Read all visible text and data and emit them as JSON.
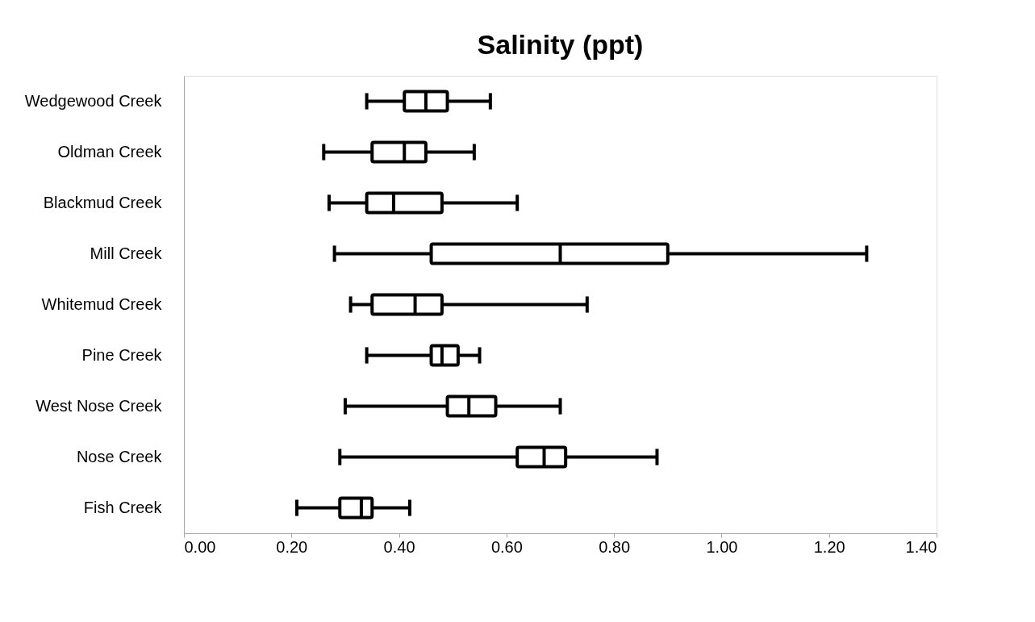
{
  "chart_data": {
    "type": "box",
    "title": "Salinity (ppt)",
    "orientation": "horizontal",
    "grid": false,
    "categories": [
      "Wedgewood Creek",
      "Oldman Creek",
      "Blackmud Creek",
      "Mill Creek",
      "Whitemud Creek",
      "Pine Creek",
      "West Nose Creek",
      "Nose Creek",
      "Fish Creek"
    ],
    "boxes": [
      {
        "low": 0.34,
        "q1": 0.41,
        "median": 0.45,
        "q3": 0.49,
        "high": 0.57
      },
      {
        "low": 0.26,
        "q1": 0.35,
        "median": 0.41,
        "q3": 0.45,
        "high": 0.54
      },
      {
        "low": 0.27,
        "q1": 0.34,
        "median": 0.39,
        "q3": 0.48,
        "high": 0.62
      },
      {
        "low": 0.28,
        "q1": 0.46,
        "median": 0.7,
        "q3": 0.9,
        "high": 1.27
      },
      {
        "low": 0.31,
        "q1": 0.35,
        "median": 0.43,
        "q3": 0.48,
        "high": 0.75
      },
      {
        "low": 0.34,
        "q1": 0.46,
        "median": 0.48,
        "q3": 0.51,
        "high": 0.55
      },
      {
        "low": 0.3,
        "q1": 0.49,
        "median": 0.53,
        "q3": 0.58,
        "high": 0.7
      },
      {
        "low": 0.29,
        "q1": 0.62,
        "median": 0.67,
        "q3": 0.71,
        "high": 0.88
      },
      {
        "low": 0.21,
        "q1": 0.29,
        "median": 0.33,
        "q3": 0.35,
        "high": 0.42
      }
    ],
    "color": "#000000",
    "xlim": [
      0,
      1.4
    ],
    "xticks": [
      {
        "value": 0,
        "label": "0.00"
      },
      {
        "value": 0.2,
        "label": "0.20"
      },
      {
        "value": 0.4,
        "label": "0.40"
      },
      {
        "value": 0.6,
        "label": "0.60"
      },
      {
        "value": 0.8,
        "label": "0.80"
      },
      {
        "value": 1.0,
        "label": "1.00"
      },
      {
        "value": 1.2,
        "label": "1.20"
      },
      {
        "value": 1.4,
        "label": "1.40"
      }
    ]
  }
}
